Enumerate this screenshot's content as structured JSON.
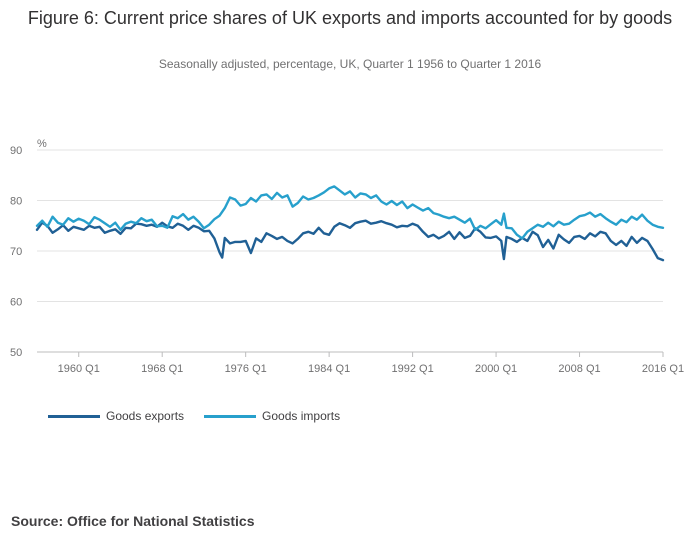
{
  "title": "Figure 6: Current price shares of UK exports and imports accounted for by goods",
  "subtitle": "Seasonally adjusted, percentage, UK, Quarter 1 1956 to Quarter 1 2016",
  "source": "Source: Office for National Statistics",
  "colors": {
    "exports": "#206095",
    "imports": "#27a0cc",
    "grid": "#e3e3e3",
    "axis": "#707071"
  },
  "chart_data": {
    "type": "line",
    "title": "Figure 6: Current price shares of UK exports and imports accounted for by goods",
    "subtitle": "Seasonally adjusted, percentage, UK, Quarter 1 1956 to Quarter 1 2016",
    "ylabel": "%",
    "xlabel": "",
    "ylim": [
      50,
      90
    ],
    "yticks": [
      "50",
      "60",
      "70",
      "80",
      "90"
    ],
    "xlim": [
      1956.0,
      2016.0
    ],
    "xticks": [
      {
        "label": "1960 Q1",
        "x": 1960
      },
      {
        "label": "1968 Q1",
        "x": 1968
      },
      {
        "label": "1976 Q1",
        "x": 1976
      },
      {
        "label": "1984 Q1",
        "x": 1984
      },
      {
        "label": "1992 Q1",
        "x": 1992
      },
      {
        "label": "2000 Q1",
        "x": 2000
      },
      {
        "label": "2008 Q1",
        "x": 2008
      },
      {
        "label": "2016 Q1",
        "x": 2016
      }
    ],
    "legend_position": "bottom",
    "series": [
      {
        "name": "Goods exports",
        "color": "#206095",
        "points": [
          [
            1956.0,
            74.2
          ],
          [
            1956.5,
            75.6
          ],
          [
            1957.0,
            75.0
          ],
          [
            1957.5,
            73.6
          ],
          [
            1958.0,
            74.3
          ],
          [
            1958.5,
            75.1
          ],
          [
            1959.0,
            74.0
          ],
          [
            1959.5,
            74.8
          ],
          [
            1960.0,
            74.5
          ],
          [
            1960.5,
            74.2
          ],
          [
            1961.0,
            75.0
          ],
          [
            1961.5,
            74.6
          ],
          [
            1962.0,
            74.8
          ],
          [
            1962.5,
            73.6
          ],
          [
            1963.0,
            74.0
          ],
          [
            1963.5,
            74.3
          ],
          [
            1964.0,
            73.4
          ],
          [
            1964.5,
            74.6
          ],
          [
            1965.0,
            74.5
          ],
          [
            1965.5,
            75.4
          ],
          [
            1966.0,
            75.3
          ],
          [
            1966.5,
            75.0
          ],
          [
            1967.0,
            75.2
          ],
          [
            1967.5,
            74.8
          ],
          [
            1968.0,
            75.6
          ],
          [
            1968.5,
            74.9
          ],
          [
            1969.0,
            74.6
          ],
          [
            1969.5,
            75.4
          ],
          [
            1970.0,
            75.0
          ],
          [
            1970.5,
            74.2
          ],
          [
            1971.0,
            75.0
          ],
          [
            1971.5,
            74.6
          ],
          [
            1972.0,
            73.9
          ],
          [
            1972.5,
            74.0
          ],
          [
            1973.0,
            72.5
          ],
          [
            1973.5,
            69.7
          ],
          [
            1973.75,
            68.7
          ],
          [
            1974.0,
            72.6
          ],
          [
            1974.5,
            71.5
          ],
          [
            1975.0,
            71.8
          ],
          [
            1975.5,
            71.8
          ],
          [
            1976.0,
            72.0
          ],
          [
            1976.5,
            69.6
          ],
          [
            1977.0,
            72.5
          ],
          [
            1977.5,
            71.8
          ],
          [
            1978.0,
            73.5
          ],
          [
            1978.5,
            73.0
          ],
          [
            1979.0,
            72.4
          ],
          [
            1979.5,
            72.8
          ],
          [
            1980.0,
            72.0
          ],
          [
            1980.5,
            71.5
          ],
          [
            1981.0,
            72.4
          ],
          [
            1981.5,
            73.5
          ],
          [
            1982.0,
            73.8
          ],
          [
            1982.5,
            73.4
          ],
          [
            1983.0,
            74.6
          ],
          [
            1983.5,
            73.5
          ],
          [
            1984.0,
            73.2
          ],
          [
            1984.5,
            74.8
          ],
          [
            1985.0,
            75.5
          ],
          [
            1985.5,
            75.1
          ],
          [
            1986.0,
            74.6
          ],
          [
            1986.5,
            75.5
          ],
          [
            1987.0,
            75.8
          ],
          [
            1987.5,
            76.0
          ],
          [
            1988.0,
            75.4
          ],
          [
            1988.5,
            75.6
          ],
          [
            1989.0,
            75.9
          ],
          [
            1989.5,
            75.5
          ],
          [
            1990.0,
            75.2
          ],
          [
            1990.5,
            74.7
          ],
          [
            1991.0,
            75.0
          ],
          [
            1991.5,
            74.9
          ],
          [
            1992.0,
            75.4
          ],
          [
            1992.5,
            75.0
          ],
          [
            1993.0,
            73.8
          ],
          [
            1993.5,
            72.8
          ],
          [
            1994.0,
            73.2
          ],
          [
            1994.5,
            72.5
          ],
          [
            1995.0,
            73.0
          ],
          [
            1995.5,
            73.8
          ],
          [
            1996.0,
            72.4
          ],
          [
            1996.5,
            73.7
          ],
          [
            1997.0,
            72.6
          ],
          [
            1997.5,
            73.0
          ],
          [
            1998.0,
            74.5
          ],
          [
            1998.5,
            73.8
          ],
          [
            1999.0,
            72.7
          ],
          [
            1999.5,
            72.6
          ],
          [
            2000.0,
            72.9
          ],
          [
            2000.5,
            72.0
          ],
          [
            2000.75,
            68.4
          ],
          [
            2001.0,
            72.8
          ],
          [
            2001.5,
            72.4
          ],
          [
            2002.0,
            71.8
          ],
          [
            2002.5,
            72.6
          ],
          [
            2003.0,
            72.0
          ],
          [
            2003.5,
            73.8
          ],
          [
            2004.0,
            73.1
          ],
          [
            2004.5,
            70.8
          ],
          [
            2005.0,
            72.2
          ],
          [
            2005.5,
            70.5
          ],
          [
            2006.0,
            73.2
          ],
          [
            2006.5,
            72.3
          ],
          [
            2007.0,
            71.6
          ],
          [
            2007.5,
            72.8
          ],
          [
            2008.0,
            73.0
          ],
          [
            2008.5,
            72.4
          ],
          [
            2009.0,
            73.5
          ],
          [
            2009.5,
            72.9
          ],
          [
            2010.0,
            73.8
          ],
          [
            2010.5,
            73.5
          ],
          [
            2011.0,
            72.0
          ],
          [
            2011.5,
            71.2
          ],
          [
            2012.0,
            72.0
          ],
          [
            2012.5,
            71.0
          ],
          [
            2013.0,
            72.8
          ],
          [
            2013.5,
            71.6
          ],
          [
            2014.0,
            72.6
          ],
          [
            2014.5,
            72.0
          ],
          [
            2015.0,
            70.4
          ],
          [
            2015.5,
            68.6
          ],
          [
            2016.0,
            68.2
          ]
        ]
      },
      {
        "name": "Goods imports",
        "color": "#27a0cc",
        "points": [
          [
            1956.0,
            75.0
          ],
          [
            1956.5,
            76.0
          ],
          [
            1957.0,
            74.8
          ],
          [
            1957.5,
            76.8
          ],
          [
            1958.0,
            75.6
          ],
          [
            1958.5,
            75.2
          ],
          [
            1959.0,
            76.5
          ],
          [
            1959.5,
            75.8
          ],
          [
            1960.0,
            76.4
          ],
          [
            1960.5,
            76.0
          ],
          [
            1961.0,
            75.3
          ],
          [
            1961.5,
            76.7
          ],
          [
            1962.0,
            76.2
          ],
          [
            1962.5,
            75.5
          ],
          [
            1963.0,
            74.8
          ],
          [
            1963.5,
            75.6
          ],
          [
            1964.0,
            74.2
          ],
          [
            1964.5,
            75.4
          ],
          [
            1965.0,
            75.8
          ],
          [
            1965.5,
            75.5
          ],
          [
            1966.0,
            76.5
          ],
          [
            1966.5,
            75.9
          ],
          [
            1967.0,
            76.2
          ],
          [
            1967.5,
            74.9
          ],
          [
            1968.0,
            75.0
          ],
          [
            1968.5,
            74.6
          ],
          [
            1969.0,
            76.9
          ],
          [
            1969.5,
            76.5
          ],
          [
            1970.0,
            77.3
          ],
          [
            1970.5,
            76.2
          ],
          [
            1971.0,
            76.8
          ],
          [
            1971.5,
            75.8
          ],
          [
            1972.0,
            74.5
          ],
          [
            1972.5,
            75.2
          ],
          [
            1973.0,
            76.3
          ],
          [
            1973.5,
            77.0
          ],
          [
            1974.0,
            78.5
          ],
          [
            1974.5,
            80.6
          ],
          [
            1975.0,
            80.2
          ],
          [
            1975.5,
            79.0
          ],
          [
            1976.0,
            79.3
          ],
          [
            1976.5,
            80.5
          ],
          [
            1977.0,
            79.8
          ],
          [
            1977.5,
            81.0
          ],
          [
            1978.0,
            81.2
          ],
          [
            1978.5,
            80.3
          ],
          [
            1979.0,
            81.5
          ],
          [
            1979.5,
            80.6
          ],
          [
            1980.0,
            81.0
          ],
          [
            1980.5,
            78.8
          ],
          [
            1981.0,
            79.5
          ],
          [
            1981.5,
            80.8
          ],
          [
            1982.0,
            80.2
          ],
          [
            1982.5,
            80.5
          ],
          [
            1983.0,
            81.0
          ],
          [
            1983.5,
            81.6
          ],
          [
            1984.0,
            82.4
          ],
          [
            1984.5,
            82.8
          ],
          [
            1985.0,
            82.0
          ],
          [
            1985.5,
            81.2
          ],
          [
            1986.0,
            81.8
          ],
          [
            1986.5,
            80.6
          ],
          [
            1987.0,
            81.4
          ],
          [
            1987.5,
            81.2
          ],
          [
            1988.0,
            80.5
          ],
          [
            1988.5,
            81.0
          ],
          [
            1989.0,
            79.8
          ],
          [
            1989.5,
            79.2
          ],
          [
            1990.0,
            79.9
          ],
          [
            1990.5,
            79.1
          ],
          [
            1991.0,
            79.8
          ],
          [
            1991.5,
            78.5
          ],
          [
            1992.0,
            79.2
          ],
          [
            1992.5,
            78.6
          ],
          [
            1993.0,
            78.0
          ],
          [
            1993.5,
            78.5
          ],
          [
            1994.0,
            77.5
          ],
          [
            1994.5,
            77.2
          ],
          [
            1995.0,
            76.8
          ],
          [
            1995.5,
            76.5
          ],
          [
            1996.0,
            76.8
          ],
          [
            1996.5,
            76.2
          ],
          [
            1997.0,
            75.6
          ],
          [
            1997.5,
            76.4
          ],
          [
            1998.0,
            74.2
          ],
          [
            1998.5,
            75.0
          ],
          [
            1999.0,
            74.5
          ],
          [
            1999.5,
            75.3
          ],
          [
            2000.0,
            76.1
          ],
          [
            2000.5,
            75.2
          ],
          [
            2000.75,
            77.4
          ],
          [
            2001.0,
            74.6
          ],
          [
            2001.5,
            74.5
          ],
          [
            2002.0,
            73.2
          ],
          [
            2002.5,
            72.5
          ],
          [
            2003.0,
            73.8
          ],
          [
            2003.5,
            74.5
          ],
          [
            2004.0,
            75.2
          ],
          [
            2004.5,
            74.8
          ],
          [
            2005.0,
            75.6
          ],
          [
            2005.5,
            74.9
          ],
          [
            2006.0,
            75.8
          ],
          [
            2006.5,
            75.2
          ],
          [
            2007.0,
            75.4
          ],
          [
            2007.5,
            76.2
          ],
          [
            2008.0,
            76.9
          ],
          [
            2008.5,
            77.1
          ],
          [
            2009.0,
            77.6
          ],
          [
            2009.5,
            76.8
          ],
          [
            2010.0,
            77.3
          ],
          [
            2010.5,
            76.5
          ],
          [
            2011.0,
            75.8
          ],
          [
            2011.5,
            75.2
          ],
          [
            2012.0,
            76.2
          ],
          [
            2012.5,
            75.7
          ],
          [
            2013.0,
            76.8
          ],
          [
            2013.5,
            76.2
          ],
          [
            2014.0,
            77.2
          ],
          [
            2014.5,
            76.0
          ],
          [
            2015.0,
            75.2
          ],
          [
            2015.5,
            74.8
          ],
          [
            2016.0,
            74.6
          ]
        ]
      }
    ]
  }
}
